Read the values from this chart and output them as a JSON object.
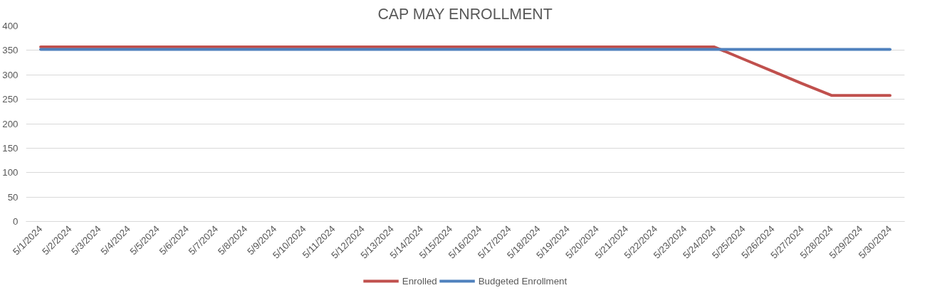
{
  "chart_data": {
    "type": "line",
    "title": "CAP MAY ENROLLMENT",
    "categories": [
      "5/1/2024",
      "5/2/2024",
      "5/3/2024",
      "5/4/2024",
      "5/5/2024",
      "5/6/2024",
      "5/7/2024",
      "5/8/2024",
      "5/9/2024",
      "5/10/2024",
      "5/11/2024",
      "5/12/2024",
      "5/13/2024",
      "5/14/2024",
      "5/15/2024",
      "5/16/2024",
      "5/17/2024",
      "5/18/2024",
      "5/19/2024",
      "5/20/2024",
      "5/21/2024",
      "5/22/2024",
      "5/23/2024",
      "5/24/2024",
      "5/25/2024",
      "5/26/2024",
      "5/27/2024",
      "5/28/2024",
      "5/29/2024",
      "5/30/2024"
    ],
    "series": [
      {
        "name": "Enrolled",
        "color": "#c0504d",
        "values": [
          357,
          357,
          357,
          357,
          357,
          357,
          357,
          357,
          357,
          357,
          357,
          357,
          357,
          357,
          357,
          357,
          357,
          357,
          357,
          357,
          357,
          357,
          357,
          357,
          332,
          307,
          282,
          258,
          258,
          258
        ]
      },
      {
        "name": "Budgeted Enrollment",
        "color": "#4f81bd",
        "values": [
          352,
          352,
          352,
          352,
          352,
          352,
          352,
          352,
          352,
          352,
          352,
          352,
          352,
          352,
          352,
          352,
          352,
          352,
          352,
          352,
          352,
          352,
          352,
          352,
          352,
          352,
          352,
          352,
          352,
          352
        ]
      }
    ],
    "ylim": [
      0,
      400
    ],
    "yticks": [
      0,
      50,
      100,
      150,
      200,
      250,
      300,
      350,
      400
    ],
    "grid": "y",
    "legend": "bottom",
    "marker": "none",
    "line_style": "solid"
  }
}
